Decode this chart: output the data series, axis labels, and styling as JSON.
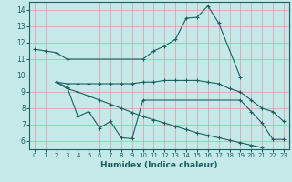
{
  "xlabel": "Humidex (Indice chaleur)",
  "bg_color": "#c5e8e8",
  "grid_color": "#d4a0a0",
  "line_color": "#1a6060",
  "xlim": [
    -0.5,
    23.5
  ],
  "ylim": [
    5.5,
    14.5
  ],
  "yticks": [
    6,
    7,
    8,
    9,
    10,
    11,
    12,
    13,
    14
  ],
  "xticks": [
    0,
    1,
    2,
    3,
    4,
    5,
    6,
    7,
    8,
    9,
    10,
    11,
    12,
    13,
    14,
    15,
    16,
    17,
    18,
    19,
    20,
    21,
    22,
    23
  ],
  "line1_x": [
    0,
    1,
    2,
    3,
    10,
    11,
    12,
    13,
    14,
    15,
    16,
    17,
    19
  ],
  "line1_y": [
    11.6,
    11.5,
    11.4,
    11.0,
    11.0,
    11.5,
    11.8,
    12.2,
    13.5,
    13.55,
    14.25,
    13.2,
    9.9
  ],
  "line2_x": [
    2,
    3,
    4,
    5,
    6,
    7,
    8,
    9,
    10,
    11,
    12,
    13,
    14,
    15,
    16,
    17,
    18,
    19,
    20,
    21,
    22,
    23
  ],
  "line2_y": [
    9.6,
    9.5,
    9.5,
    9.5,
    9.5,
    9.5,
    9.5,
    9.5,
    9.6,
    9.6,
    9.7,
    9.7,
    9.7,
    9.7,
    9.6,
    9.5,
    9.2,
    9.0,
    8.5,
    8.0,
    7.8,
    7.2
  ],
  "line3_x": [
    2,
    3,
    4,
    5,
    6,
    7,
    8,
    9,
    10,
    19,
    20,
    21,
    22,
    23
  ],
  "line3_y": [
    9.6,
    9.3,
    7.5,
    7.8,
    6.8,
    7.2,
    6.2,
    6.15,
    8.5,
    8.5,
    7.8,
    7.1,
    6.1,
    6.1
  ],
  "line4_x": [
    2,
    3,
    4,
    5,
    6,
    7,
    8,
    9,
    10,
    11,
    12,
    13,
    14,
    15,
    16,
    17,
    18,
    19,
    20,
    21,
    22,
    23
  ],
  "line4_y": [
    9.6,
    9.2,
    9.0,
    8.75,
    8.5,
    8.25,
    8.0,
    7.75,
    7.5,
    7.3,
    7.1,
    6.9,
    6.7,
    6.5,
    6.35,
    6.2,
    6.05,
    5.9,
    5.75,
    5.6,
    null,
    null
  ]
}
